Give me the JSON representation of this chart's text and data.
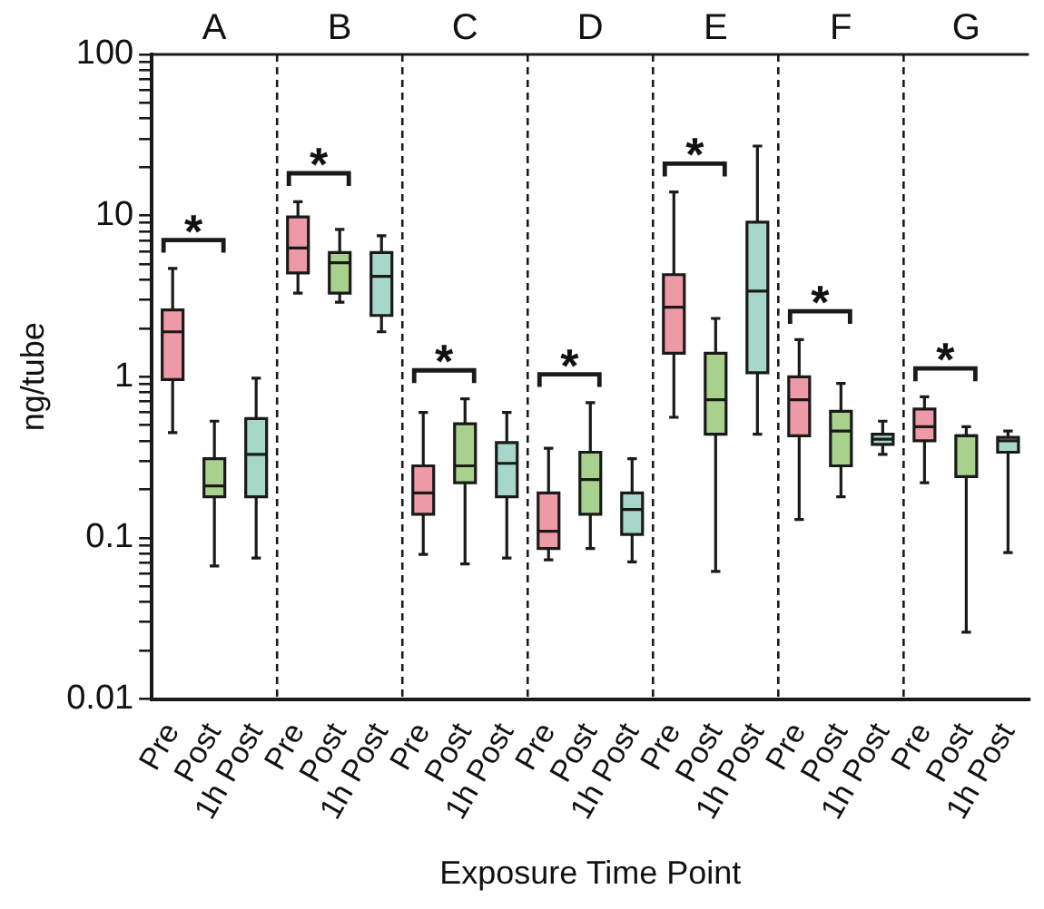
{
  "chart_data": {
    "type": "box",
    "xlabel": "Exposure Time Point",
    "ylabel": "ng/tube",
    "log": true,
    "grid": false,
    "categories": [
      "Pre",
      "Post",
      "1h Post",
      "Pre",
      "Post",
      "1h Post",
      "Pre",
      "Post",
      "1h Post",
      "Pre",
      "Post",
      "1h Post",
      "Pre",
      "Post",
      "1h Post",
      "Pre",
      "Post",
      "1h Post",
      "Pre",
      "Post",
      "1h Post"
    ],
    "colors": [
      "#ee9aa6",
      "#a9d18e",
      "#a6d7c9",
      "#ee9aa6",
      "#a9d18e",
      "#a6d7c9",
      "#ee9aa6",
      "#a9d18e",
      "#a6d7c9",
      "#ee9aa6",
      "#a9d18e",
      "#a6d7c9",
      "#ee9aa6",
      "#a9d18e",
      "#a6d7c9",
      "#ee9aa6",
      "#a9d18e",
      "#a6d7c9",
      "#ee9aa6",
      "#a9d18e",
      "#a6d7c9"
    ],
    "boxes": [
      {
        "low": 0.45,
        "q1": 0.96,
        "median": 1.9,
        "q3": 2.6,
        "high": 4.7
      },
      {
        "low": 0.067,
        "q1": 0.18,
        "median": 0.21,
        "q3": 0.31,
        "high": 0.53
      },
      {
        "low": 0.075,
        "q1": 0.18,
        "median": 0.33,
        "q3": 0.55,
        "high": 0.98
      },
      {
        "low": 3.3,
        "q1": 4.4,
        "median": 6.3,
        "q3": 9.8,
        "high": 12.2
      },
      {
        "low": 2.9,
        "q1": 3.3,
        "median": 5.1,
        "q3": 5.9,
        "high": 8.2
      },
      {
        "low": 1.9,
        "q1": 2.4,
        "median": 4.2,
        "q3": 5.9,
        "high": 7.5
      },
      {
        "low": 0.079,
        "q1": 0.14,
        "median": 0.19,
        "q3": 0.28,
        "high": 0.6
      },
      {
        "low": 0.069,
        "q1": 0.22,
        "median": 0.28,
        "q3": 0.51,
        "high": 0.73
      },
      {
        "low": 0.075,
        "q1": 0.18,
        "median": 0.29,
        "q3": 0.39,
        "high": 0.6
      },
      {
        "low": 0.073,
        "q1": 0.086,
        "median": 0.11,
        "q3": 0.19,
        "high": 0.36
      },
      {
        "low": 0.086,
        "q1": 0.14,
        "median": 0.23,
        "q3": 0.34,
        "high": 0.69
      },
      {
        "low": 0.071,
        "q1": 0.105,
        "median": 0.15,
        "q3": 0.19,
        "high": 0.31
      },
      {
        "low": 0.56,
        "q1": 1.4,
        "median": 2.7,
        "q3": 4.3,
        "high": 14
      },
      {
        "low": 0.062,
        "q1": 0.44,
        "median": 0.72,
        "q3": 1.4,
        "high": 2.3
      },
      {
        "low": 0.44,
        "q1": 1.06,
        "median": 3.4,
        "q3": 9.1,
        "high": 27
      },
      {
        "low": 0.13,
        "q1": 0.43,
        "median": 0.72,
        "q3": 1.0,
        "high": 1.7
      },
      {
        "low": 0.18,
        "q1": 0.28,
        "median": 0.46,
        "q3": 0.61,
        "high": 0.91
      },
      {
        "low": 0.33,
        "q1": 0.38,
        "median": 0.41,
        "q3": 0.44,
        "high": 0.53
      },
      {
        "low": 0.22,
        "q1": 0.4,
        "median": 0.49,
        "q3": 0.63,
        "high": 0.75
      },
      {
        "low": 0.026,
        "q1": 0.24,
        "median": 0.43,
        "q3": 0.43,
        "high": 0.49
      },
      {
        "low": 0.081,
        "q1": 0.34,
        "median": 0.4,
        "q3": 0.42,
        "high": 0.46
      }
    ],
    "ylim": [
      0.01,
      100
    ],
    "yticks": [
      0.01,
      {
        "value": 0.02,
        "label": null
      },
      {
        "value": 0.03,
        "label": null
      },
      {
        "value": 0.04,
        "label": null
      },
      {
        "value": 0.05,
        "label": null
      },
      {
        "value": 0.06,
        "label": null
      },
      {
        "value": 0.07,
        "label": null
      },
      {
        "value": 0.08,
        "label": null
      },
      {
        "value": 0.09,
        "label": null
      },
      0.1,
      {
        "value": 0.2,
        "label": null
      },
      {
        "value": 0.3,
        "label": null
      },
      {
        "value": 0.4,
        "label": null
      },
      {
        "value": 0.5,
        "label": null
      },
      {
        "value": 0.6,
        "label": null
      },
      {
        "value": 0.7,
        "label": null
      },
      {
        "value": 0.8,
        "label": null
      },
      {
        "value": 0.9,
        "label": null
      },
      1,
      {
        "value": 2,
        "label": null
      },
      {
        "value": 3,
        "label": null
      },
      {
        "value": 4,
        "label": null
      },
      {
        "value": 5,
        "label": null
      },
      {
        "value": 6,
        "label": null
      },
      {
        "value": 7,
        "label": null
      },
      {
        "value": 8,
        "label": null
      },
      {
        "value": 9,
        "label": null
      },
      10,
      {
        "value": 20,
        "label": null
      },
      {
        "value": 30,
        "label": null
      },
      {
        "value": 40,
        "label": null
      },
      {
        "value": 50,
        "label": null
      },
      {
        "value": 60,
        "label": null
      },
      {
        "value": 70,
        "label": null
      },
      {
        "value": 80,
        "label": null
      },
      {
        "value": 90,
        "label": null
      },
      100
    ],
    "annotations": [
      "A",
      "B",
      "C",
      "D",
      "E",
      "F",
      "G",
      "*",
      "*",
      "*",
      "*",
      "*",
      "*",
      "*"
    ]
  }
}
